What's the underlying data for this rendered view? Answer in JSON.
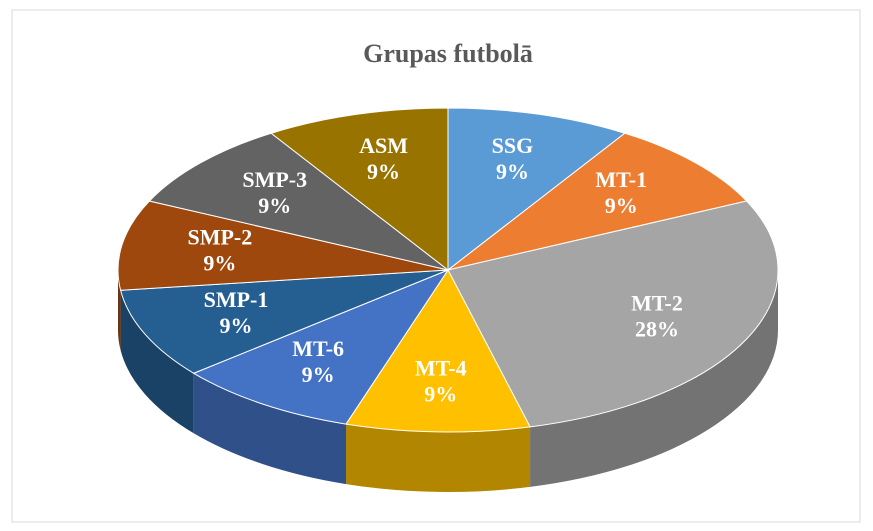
{
  "chart_data": {
    "type": "pie",
    "title": "Grupas futbolā",
    "categories": [
      "SSG",
      "MT-1",
      "MT-2",
      "MT-4",
      "MT-6",
      "SMP-1",
      "SMP-2",
      "SMP-3",
      "ASM"
    ],
    "values": [
      9,
      9,
      28,
      9,
      9,
      9,
      9,
      9,
      9
    ],
    "value_labels": [
      "9%",
      "9%",
      "28%",
      "9%",
      "9%",
      "9%",
      "9%",
      "9%",
      "9%"
    ],
    "colors": [
      "#5b9bd5",
      "#ed7d31",
      "#a5a5a5",
      "#ffc000",
      "#4472c4",
      "#255e91",
      "#9e480e",
      "#636363",
      "#997300"
    ]
  }
}
